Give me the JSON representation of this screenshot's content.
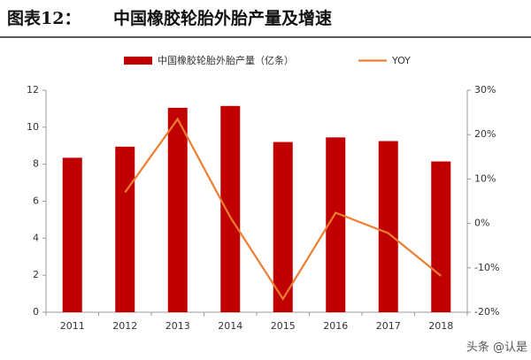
{
  "chart_data": {
    "type": "bar-line",
    "label": "图表12：",
    "title": "中国橡胶轮胎外胎产量及增速",
    "categories": [
      "2011",
      "2012",
      "2013",
      "2014",
      "2015",
      "2016",
      "2017",
      "2018"
    ],
    "series": [
      {
        "name": "中国橡胶轮胎外胎产量（亿条）",
        "type": "bar",
        "color": "#c00000",
        "values": [
          8.35,
          8.95,
          11.05,
          11.15,
          9.2,
          9.45,
          9.25,
          8.15
        ]
      },
      {
        "name": "YOY",
        "type": "line",
        "axis": "y2",
        "color": "#ed7d31",
        "values": [
          null,
          7,
          23.5,
          1.4,
          -17,
          2.4,
          -2.2,
          -11.8
        ]
      }
    ],
    "ylim": [
      0,
      12
    ],
    "yticks": [
      0,
      2,
      4,
      6,
      8,
      10,
      12
    ],
    "y2lim": [
      -20,
      30
    ],
    "y2ticks": [
      {
        "value": -20,
        "label": "-20%"
      },
      {
        "value": -10,
        "label": "-10%"
      },
      {
        "value": 0,
        "label": "0%"
      },
      {
        "value": 10,
        "label": "10%"
      },
      {
        "value": 20,
        "label": "20%"
      },
      {
        "value": 30,
        "label": "30%"
      }
    ],
    "legend": "top",
    "watermark": "头条 @认是"
  }
}
